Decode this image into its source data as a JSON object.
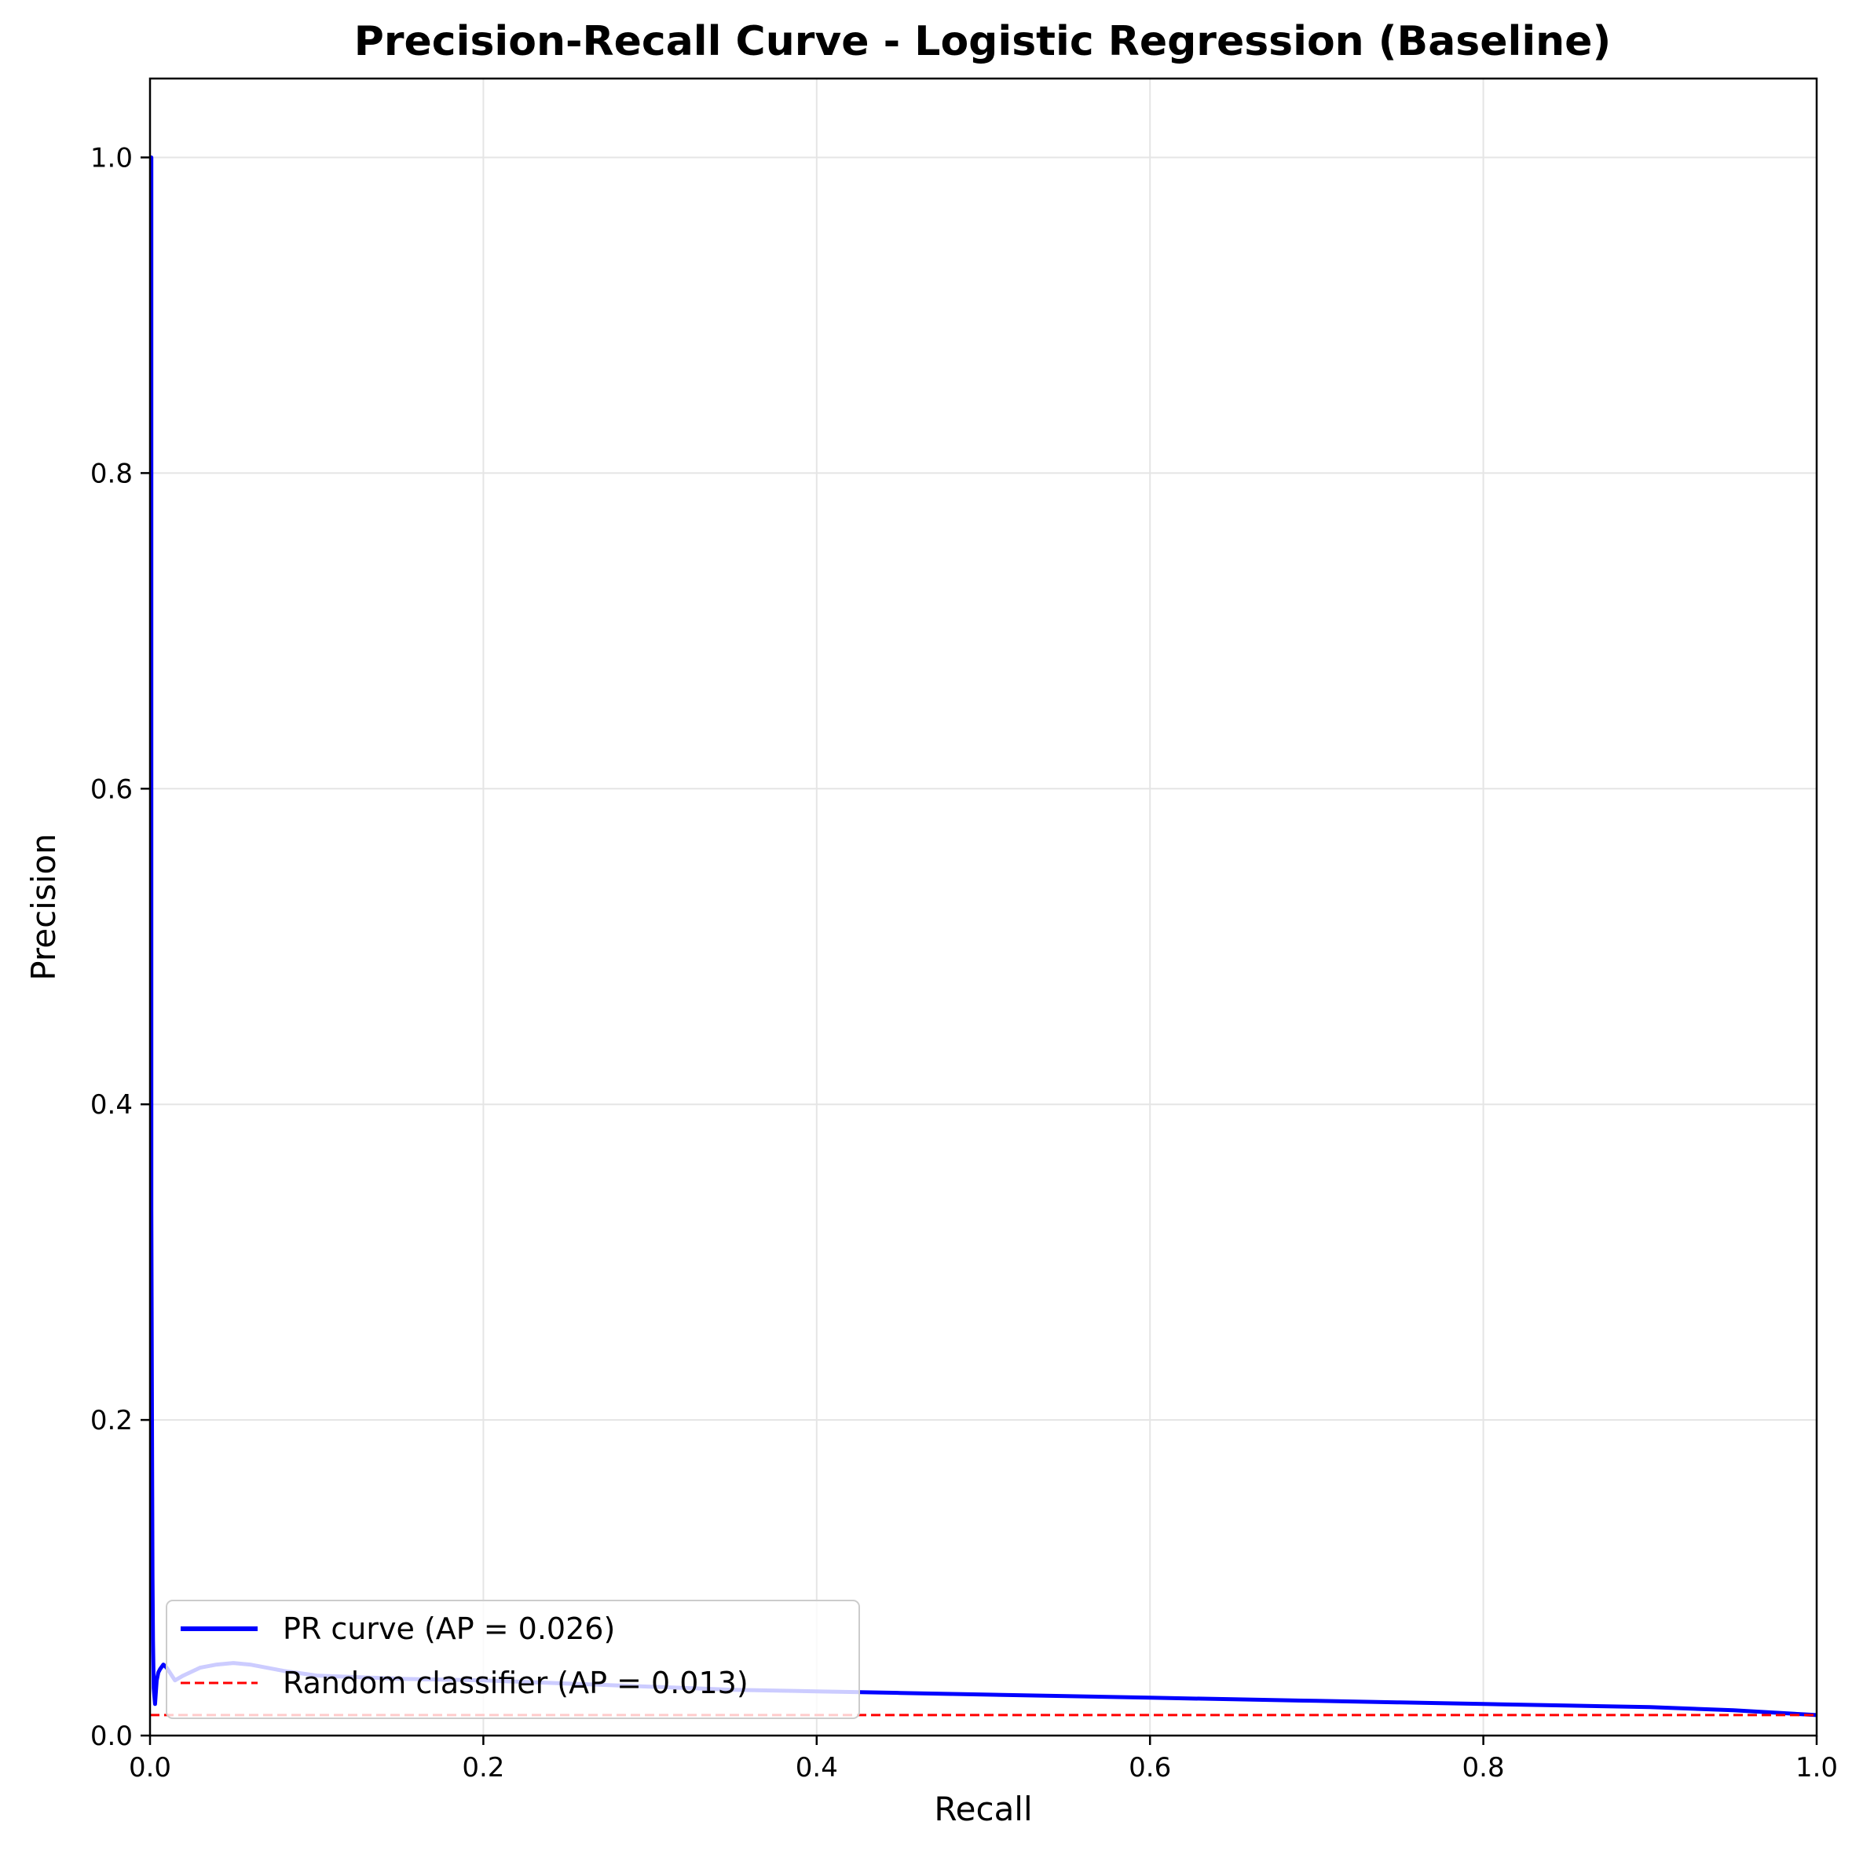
{
  "chart_data": {
    "type": "line",
    "title": "Precision-Recall Curve - Logistic Regression (Baseline)",
    "xlabel": "Recall",
    "ylabel": "Precision",
    "xlim": [
      0.0,
      1.0
    ],
    "ylim": [
      0.0,
      1.05
    ],
    "grid": true,
    "legend_position": "lower-left",
    "x_ticks": [
      "0.0",
      "0.2",
      "0.4",
      "0.6",
      "0.8",
      "1.0"
    ],
    "y_ticks": [
      "0.0",
      "0.2",
      "0.4",
      "0.6",
      "0.8",
      "1.0"
    ],
    "series": [
      {
        "name": "PR curve (AP = 0.026)",
        "color": "#0000ff",
        "style": "solid",
        "x": [
          0.0,
          0.0008,
          0.0008,
          0.0012,
          0.0015,
          0.0018,
          0.0022,
          0.003,
          0.004,
          0.005,
          0.006,
          0.008,
          0.01,
          0.015,
          0.02,
          0.03,
          0.04,
          0.05,
          0.06,
          0.08,
          0.1,
          0.15,
          0.2,
          0.25,
          0.3,
          0.35,
          0.4,
          0.45,
          0.5,
          0.55,
          0.6,
          0.65,
          0.7,
          0.75,
          0.8,
          0.85,
          0.9,
          0.95,
          1.0
        ],
        "y": [
          1.0,
          1.0,
          0.333,
          0.2,
          0.1,
          0.06,
          0.03,
          0.02,
          0.035,
          0.04,
          0.042,
          0.045,
          0.043,
          0.035,
          0.038,
          0.043,
          0.045,
          0.046,
          0.045,
          0.041,
          0.038,
          0.036,
          0.035,
          0.033,
          0.031,
          0.029,
          0.028,
          0.027,
          0.026,
          0.025,
          0.024,
          0.023,
          0.022,
          0.021,
          0.02,
          0.019,
          0.018,
          0.016,
          0.013
        ]
      },
      {
        "name": "Random classifier (AP = 0.013)",
        "color": "#ff0000",
        "style": "dashed",
        "x": [
          0.0,
          1.0
        ],
        "y": [
          0.013,
          0.013
        ]
      }
    ]
  }
}
